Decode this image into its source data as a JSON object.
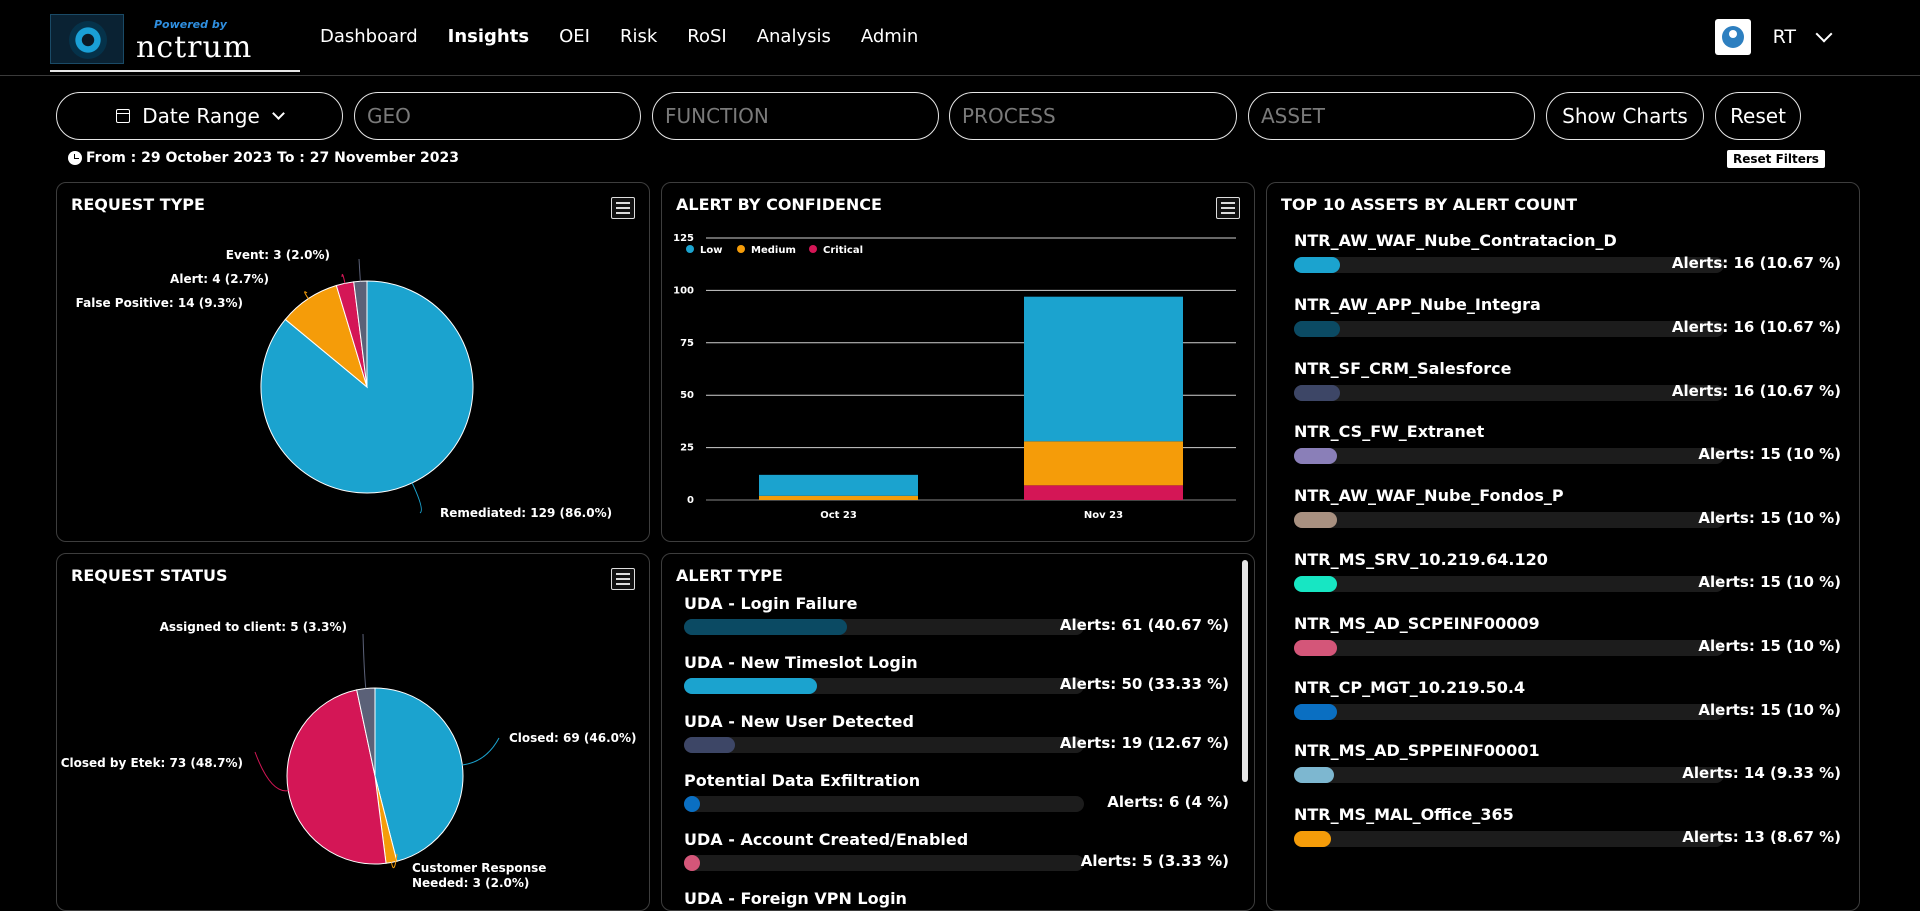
{
  "header": {
    "logo": {
      "powered_by": "Powered by",
      "brand": "nctrum"
    },
    "nav": [
      "Dashboard",
      "Insights",
      "OEI",
      "Risk",
      "RoSI",
      "Analysis",
      "Admin"
    ],
    "active_nav": "Insights",
    "user": {
      "initials": "RT"
    }
  },
  "filters": {
    "date_range_label": "Date Range",
    "geo_placeholder": "GEO",
    "function_placeholder": "FUNCTION",
    "process_placeholder": "PROCESS",
    "asset_placeholder": "ASSET",
    "show_charts_label": "Show Charts",
    "reset_label": "Reset",
    "date_text": "From : 29 October 2023 To : 27 November 2023",
    "reset_filters_label": "Reset Filters"
  },
  "panels": {
    "request_type": {
      "title": "REQUEST TYPE"
    },
    "alert_confidence": {
      "title": "ALERT BY CONFIDENCE"
    },
    "request_status": {
      "title": "REQUEST STATUS"
    },
    "alert_type": {
      "title": "ALERT TYPE"
    },
    "top_assets": {
      "title": "TOP 10 ASSETS BY ALERT COUNT"
    }
  },
  "colors": {
    "blue": "#1ba3cf",
    "orange": "#f59c09",
    "crimson": "#d41656",
    "slate": "#5b6178"
  },
  "chart_data": [
    {
      "type": "pie",
      "title": "REQUEST TYPE",
      "slices": [
        {
          "label": "Remediated",
          "value": 129,
          "pct": "86.0%",
          "color": "#1ba3cf"
        },
        {
          "label": "False Positive",
          "value": 14,
          "pct": "9.3%",
          "color": "#f59c09"
        },
        {
          "label": "Alert",
          "value": 4,
          "pct": "2.7%",
          "color": "#d41656"
        },
        {
          "label": "Event",
          "value": 3,
          "pct": "2.0%",
          "color": "#5b6178"
        }
      ]
    },
    {
      "type": "bar",
      "stacked": true,
      "title": "ALERT BY CONFIDENCE",
      "categories": [
        "Oct 23",
        "Nov 23"
      ],
      "series": [
        {
          "name": "Low",
          "color": "#1ba3cf",
          "values": [
            10,
            69
          ]
        },
        {
          "name": "Medium",
          "color": "#f59c09",
          "values": [
            2,
            21
          ]
        },
        {
          "name": "Critical",
          "color": "#d41656",
          "values": [
            0,
            7
          ]
        }
      ],
      "ylim": [
        0,
        125
      ],
      "yticks": [
        0,
        25,
        50,
        75,
        100,
        125
      ],
      "legend": "top-left",
      "grid": true
    },
    {
      "type": "pie",
      "title": "REQUEST STATUS",
      "slices": [
        {
          "label": "Closed",
          "value": 69,
          "pct": "46.0%",
          "color": "#1ba3cf"
        },
        {
          "label": "Customer Response Needed",
          "value": 3,
          "pct": "2.0%",
          "color": "#f59c09"
        },
        {
          "label": "Closed by Etek",
          "value": 73,
          "pct": "48.7%",
          "color": "#d41656"
        },
        {
          "label": "Assigned to client",
          "value": 5,
          "pct": "3.3%",
          "color": "#5b6178"
        }
      ]
    }
  ],
  "alert_types": [
    {
      "label": "UDA - Login Failure",
      "value": "Alerts: 61 (40.67 %)",
      "fraction": 0.4067,
      "color": "#0b4a63"
    },
    {
      "label": "UDA - New Timeslot Login",
      "value": "Alerts: 50 (33.33 %)",
      "fraction": 0.3333,
      "color": "#1ba3cf"
    },
    {
      "label": "UDA - New User Detected",
      "value": "Alerts: 19 (12.67 %)",
      "fraction": 0.1267,
      "color": "#3d4666"
    },
    {
      "label": "Potential Data Exfiltration",
      "value": "Alerts: 6 (4 %)",
      "fraction": 0.04,
      "color": "#0a6fc2"
    },
    {
      "label": "UDA - Account Created/Enabled",
      "value": "Alerts: 5 (3.33 %)",
      "fraction": 0.0333,
      "color": "#d45679"
    },
    {
      "label": "UDA - Foreign VPN Login",
      "value": "",
      "fraction": 0,
      "color": "#1ba3cf"
    }
  ],
  "top_assets": [
    {
      "label": "NTR_AW_WAF_Nube_Contratacion_D",
      "value": "Alerts: 16 (10.67 %)",
      "fraction": 0.1067,
      "color": "#1ba3cf"
    },
    {
      "label": "NTR_AW_APP_Nube_Integra",
      "value": "Alerts: 16 (10.67 %)",
      "fraction": 0.1067,
      "color": "#0b4a63"
    },
    {
      "label": "NTR_SF_CRM_Salesforce",
      "value": "Alerts: 16 (10.67 %)",
      "fraction": 0.1067,
      "color": "#3d4666"
    },
    {
      "label": "NTR_CS_FW_Extranet",
      "value": "Alerts: 15 (10 %)",
      "fraction": 0.1,
      "color": "#8a7fb8"
    },
    {
      "label": "NTR_AW_WAF_Nube_Fondos_P",
      "value": "Alerts: 15 (10 %)",
      "fraction": 0.1,
      "color": "#a89080"
    },
    {
      "label": "NTR_MS_SRV_10.219.64.120",
      "value": "Alerts: 15 (10 %)",
      "fraction": 0.1,
      "color": "#17e6c3"
    },
    {
      "label": "NTR_MS_AD_SCPEINF00009",
      "value": "Alerts: 15 (10 %)",
      "fraction": 0.1,
      "color": "#d45679"
    },
    {
      "label": "NTR_CP_MGT_10.219.50.4",
      "value": "Alerts: 15 (10 %)",
      "fraction": 0.1,
      "color": "#0a6fc2"
    },
    {
      "label": "NTR_MS_AD_SPPEINF00001",
      "value": "Alerts: 14 (9.33 %)",
      "fraction": 0.0933,
      "color": "#7db7d0"
    },
    {
      "label": "NTR_MS_MAL_Office_365",
      "value": "Alerts: 13 (8.67 %)",
      "fraction": 0.0867,
      "color": "#f59c09"
    }
  ]
}
